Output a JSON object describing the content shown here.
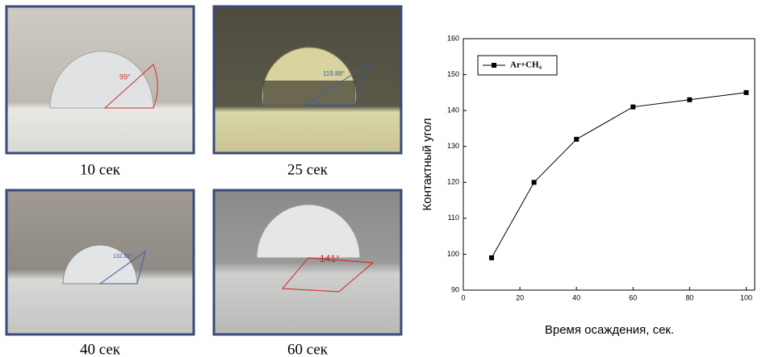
{
  "photos": [
    {
      "caption": "10 сек",
      "angle": "99°"
    },
    {
      "caption": "25 сек",
      "angle": "119.88°"
    },
    {
      "caption": "40 сек",
      "angle": "132.02°"
    },
    {
      "caption": "60 сек",
      "angle": "141°"
    }
  ],
  "chart_data": {
    "type": "line",
    "x_label": "Время осаждения, сек.",
    "y_label": "Контактный угол",
    "x": [
      10,
      25,
      40,
      60,
      80,
      100
    ],
    "series": [
      {
        "name": "Ar+CH₄",
        "color": "#000000",
        "values": [
          99,
          120,
          132,
          141,
          143,
          145
        ]
      }
    ],
    "xlim": [
      0,
      103
    ],
    "xticks": [
      0,
      20,
      40,
      60,
      80,
      100
    ],
    "ylim": [
      90,
      160
    ],
    "yticks": [
      90,
      100,
      110,
      120,
      130,
      140,
      150,
      160
    ],
    "legend": "upper left"
  }
}
